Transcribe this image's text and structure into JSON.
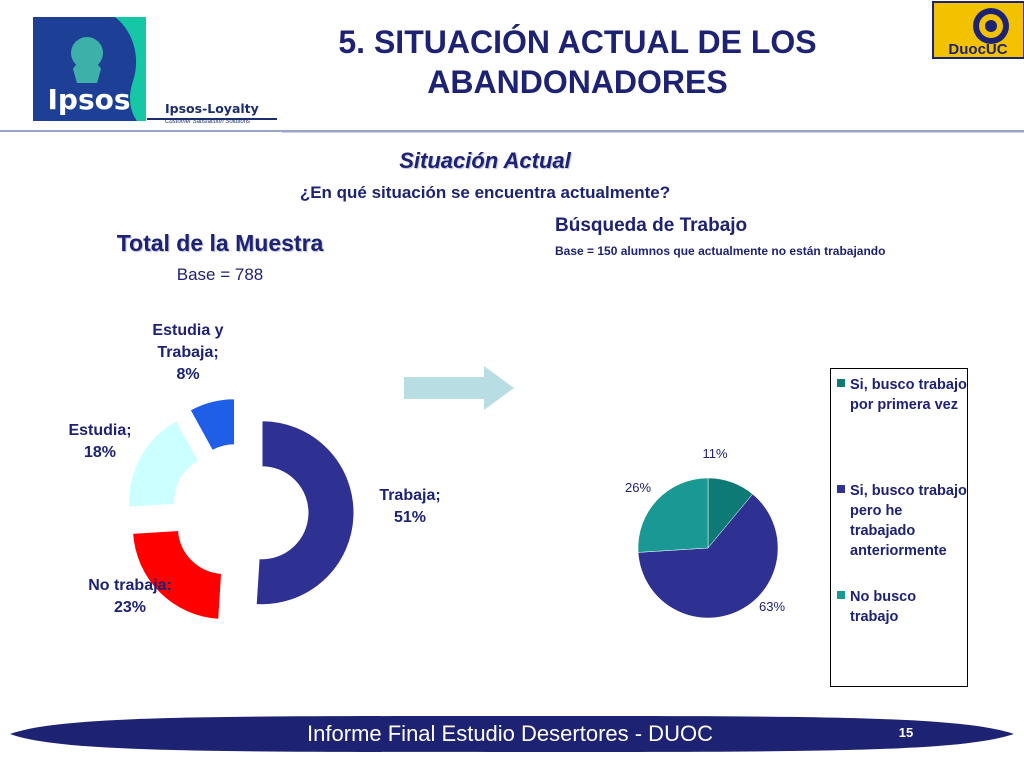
{
  "header": {
    "title_line1": "5. SITUACIÓN ACTUAL DE LOS",
    "title_line2": "ABANDONADORES",
    "logo_text": "Ipsos",
    "loyalty_name": "Ipsos-Loyalty",
    "loyalty_tagline": "Customer Satisfaction Solutions",
    "duoc_text": "DuocUC"
  },
  "section": {
    "title": "Situación Actual",
    "question": "¿En qué situación se encuentra actualmente?"
  },
  "left_panel": {
    "title": "Total de la Muestra",
    "base": "Base = 788"
  },
  "right_panel": {
    "title": "Búsqueda de Trabajo",
    "base": "Base = 150 alumnos que actualmente no están trabajando"
  },
  "legend": {
    "items": [
      {
        "label": "Si, busco trabajo por primera vez",
        "color": "#0e7a75"
      },
      {
        "label": "Si, busco trabajo pero he trabajado anteriormente",
        "color": "#2e3192"
      },
      {
        "label": "No busco trabajo",
        "color": "#1a9894"
      }
    ]
  },
  "footer": {
    "text": "Informe Final Estudio Desertores - DUOC",
    "page_number": "15"
  },
  "colors": {
    "navy": "#1e2272",
    "trabaja": "#2e3192",
    "no_trabaja": "#ff0000",
    "estudia": "#ccffff",
    "estudia_trabaja": "#1f5fe8"
  },
  "chart_data": [
    {
      "type": "pie",
      "variant": "donut",
      "categories": [
        "Trabaja",
        "No trabaja",
        "Estudia",
        "Estudia y Trabaja"
      ],
      "values": [
        51,
        23,
        18,
        8
      ],
      "data_labels": [
        [
          "Trabaja;",
          "51%"
        ],
        [
          "No trabaja;",
          "23%"
        ],
        [
          "Estudia;",
          "18%"
        ],
        [
          "Estudia y",
          "Trabaja;",
          "8%"
        ]
      ],
      "colors": [
        "#2e3192",
        "#ff0000",
        "#ccffff",
        "#1f5fe8"
      ],
      "title": "Total de la Muestra"
    },
    {
      "type": "pie",
      "categories": [
        "Si, busco trabajo por primera vez",
        "Si, busco trabajo pero he trabajado anteriormente",
        "No busco trabajo"
      ],
      "values": [
        11,
        63,
        26
      ],
      "data_labels": [
        "11%",
        "63%",
        "26%"
      ],
      "colors": [
        "#0e7a75",
        "#2e3192",
        "#1a9894"
      ],
      "title": "Búsqueda de Trabajo",
      "legend": "right"
    }
  ]
}
